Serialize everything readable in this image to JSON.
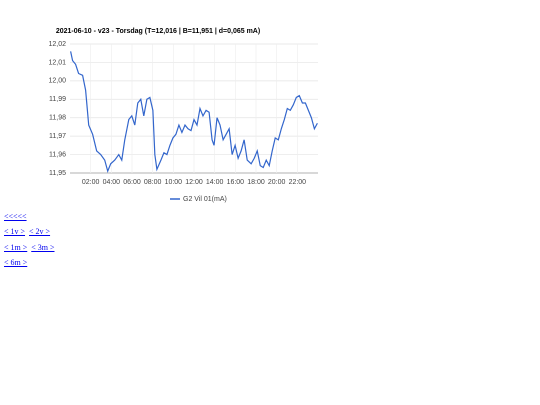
{
  "chart_data": {
    "type": "line",
    "title": "2021-06-10 - v23 - Torsdag (T=12,016 | B=11,951 | d=0,065 mA)",
    "x": [
      0.06,
      0.25,
      0.54,
      0.83,
      1.22,
      1.51,
      1.81,
      2.19,
      2.58,
      2.97,
      3.36,
      3.65,
      3.94,
      4.33,
      4.72,
      5.01,
      5.3,
      5.69,
      5.98,
      6.27,
      6.56,
      6.85,
      7.14,
      7.44,
      7.73,
      8.02,
      8.21,
      8.41,
      8.8,
      9.09,
      9.38,
      9.67,
      9.96,
      10.25,
      10.54,
      10.83,
      11.13,
      11.42,
      11.71,
      12.0,
      12.29,
      12.58,
      12.87,
      13.17,
      13.46,
      13.75,
      13.94,
      14.23,
      14.52,
      14.82,
      15.11,
      15.4,
      15.69,
      15.98,
      16.27,
      16.56,
      16.85,
      17.15,
      17.53,
      17.83,
      18.12,
      18.41,
      18.7,
      18.99,
      19.28,
      19.57,
      19.86,
      20.16,
      20.45,
      20.74,
      21.03,
      21.32,
      21.61,
      21.9,
      22.19,
      22.49,
      22.78,
      23.07,
      23.36,
      23.65,
      23.94
    ],
    "series": [
      {
        "name": "G2 Vil 01(mA)",
        "color": "#3366cc",
        "values": [
          12.016,
          12.011,
          12.009,
          12.004,
          12.003,
          11.995,
          11.976,
          11.971,
          11.962,
          11.96,
          11.957,
          11.951,
          11.955,
          11.957,
          11.96,
          11.957,
          11.968,
          11.979,
          11.981,
          11.976,
          11.988,
          11.99,
          11.981,
          11.99,
          11.991,
          11.984,
          11.96,
          11.952,
          11.957,
          11.961,
          11.96,
          11.965,
          11.969,
          11.971,
          11.976,
          11.972,
          11.976,
          11.974,
          11.973,
          11.979,
          11.976,
          11.985,
          11.981,
          11.984,
          11.983,
          11.968,
          11.965,
          11.98,
          11.976,
          11.968,
          11.971,
          11.974,
          11.96,
          11.965,
          11.958,
          11.962,
          11.968,
          11.957,
          11.955,
          11.958,
          11.962,
          11.954,
          11.953,
          11.957,
          11.954,
          11.962,
          11.969,
          11.968,
          11.974,
          11.979,
          11.985,
          11.984,
          11.987,
          11.991,
          11.992,
          11.988,
          11.988,
          11.984,
          11.98,
          11.974,
          11.977
        ]
      }
    ],
    "xlim": [
      0,
      24
    ],
    "xticks": [
      {
        "value": 2,
        "label": "02:00"
      },
      {
        "value": 4,
        "label": "04:00"
      },
      {
        "value": 6,
        "label": "06:00"
      },
      {
        "value": 8,
        "label": "08:00"
      },
      {
        "value": 10,
        "label": "10:00"
      },
      {
        "value": 12,
        "label": "12:00"
      },
      {
        "value": 14,
        "label": "14:00"
      },
      {
        "value": 16,
        "label": "16:00"
      },
      {
        "value": 18,
        "label": "18:00"
      },
      {
        "value": 20,
        "label": "20:00"
      },
      {
        "value": 22,
        "label": "22:00"
      }
    ],
    "ylim": [
      11.95,
      12.02
    ],
    "yticks": [
      {
        "value": 11.95,
        "label": "11,95"
      },
      {
        "value": 11.96,
        "label": "11,96"
      },
      {
        "value": 11.97,
        "label": "11,97"
      },
      {
        "value": 11.98,
        "label": "11,98"
      },
      {
        "value": 11.99,
        "label": "11,99"
      },
      {
        "value": 12.0,
        "label": "12,00"
      },
      {
        "value": 12.01,
        "label": "12,01"
      },
      {
        "value": 12.02,
        "label": "12,02"
      }
    ],
    "grid": true,
    "legend": "bottom"
  },
  "links": [
    [
      "<<<<<"
    ],
    [
      "< 1v >",
      "< 2v >"
    ],
    [
      "< 1m >",
      "< 3m >"
    ],
    [
      "< 6m >"
    ]
  ]
}
